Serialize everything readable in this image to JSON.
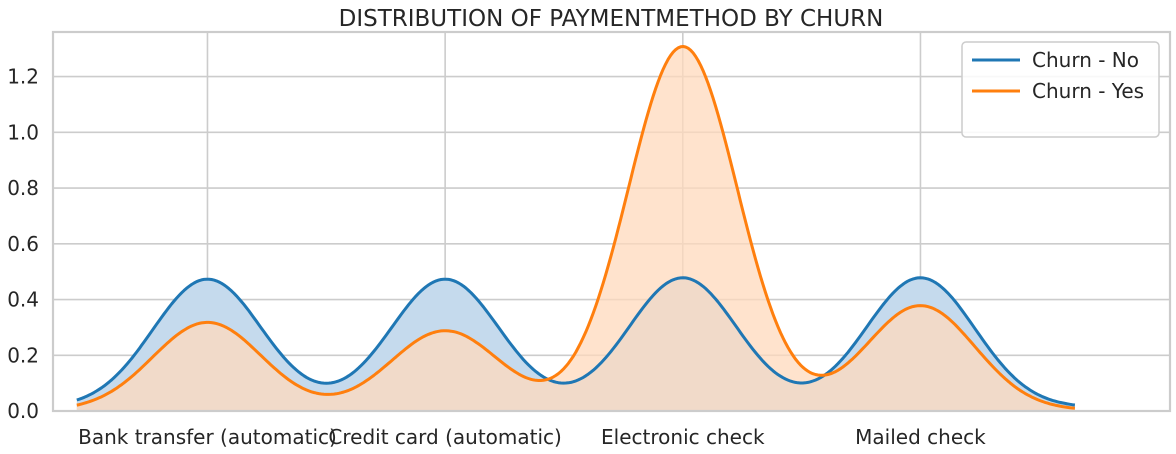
{
  "chart_data": {
    "type": "area",
    "title": "DISTRIBUTION OF PAYMENTMETHOD BY CHURN",
    "xlabel": "",
    "ylabel": "",
    "categories": [
      "Bank transfer (automatic)",
      "Credit card (automatic)",
      "Electronic check",
      "Mailed check"
    ],
    "ylim": [
      0,
      1.36
    ],
    "yticks": [
      0.0,
      0.2,
      0.4,
      0.6,
      0.8,
      1.0,
      1.2
    ],
    "ytick_labels": [
      "0.0",
      "0.2",
      "0.4",
      "0.6",
      "0.8",
      "1.0",
      "1.2"
    ],
    "grid": true,
    "legend_position": "top-right",
    "series": [
      {
        "name": "Churn - No",
        "color": "#1f77b4",
        "fill": "#c5daed",
        "peaks": [
          0.46,
          0.46,
          0.465,
          0.465
        ],
        "valley_min": 0.065,
        "tails": [
          0.01,
          0.01
        ]
      },
      {
        "name": "Churn - Yes",
        "color": "#ff7f0e",
        "fill": "#ffd9bc",
        "peaks": [
          0.315,
          0.285,
          1.305,
          0.375
        ],
        "valley_min": 0.015,
        "tails": [
          0.01,
          0.01
        ]
      }
    ]
  }
}
